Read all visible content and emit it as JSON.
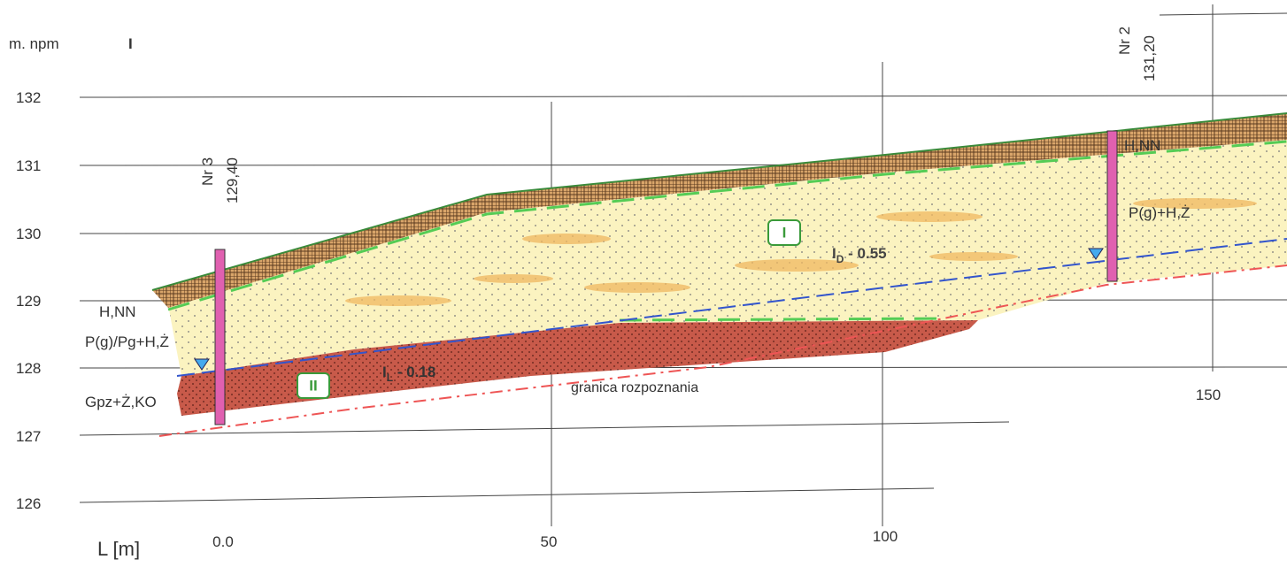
{
  "axis": {
    "y_label": "m. npm",
    "y_marker": "I",
    "x_label": "L [m]",
    "y_ticks": [
      "132",
      "131",
      "130",
      "129",
      "128",
      "127",
      "126"
    ],
    "x_ticks": [
      "0.0",
      "50",
      "100",
      "150"
    ]
  },
  "boreholes": [
    {
      "name": "Nr 3",
      "elevation": "129,40"
    },
    {
      "name": "Nr 2",
      "elevation": "131,20"
    }
  ],
  "layer_labels": [
    "H,NN",
    "P(g)/Pg+H,Ż",
    "Gpz+Ż,KO",
    "H,NN",
    "P(g)+H,Ż"
  ],
  "layers": [
    "I",
    "II"
  ],
  "annotations": {
    "density": {
      "symbol": "I",
      "subscript": "D",
      "value": " - 0.55"
    },
    "liquidity": {
      "symbol": "I",
      "subscript": "L",
      "value": " - 0.18"
    },
    "limit": "granica rozpoznania"
  }
}
